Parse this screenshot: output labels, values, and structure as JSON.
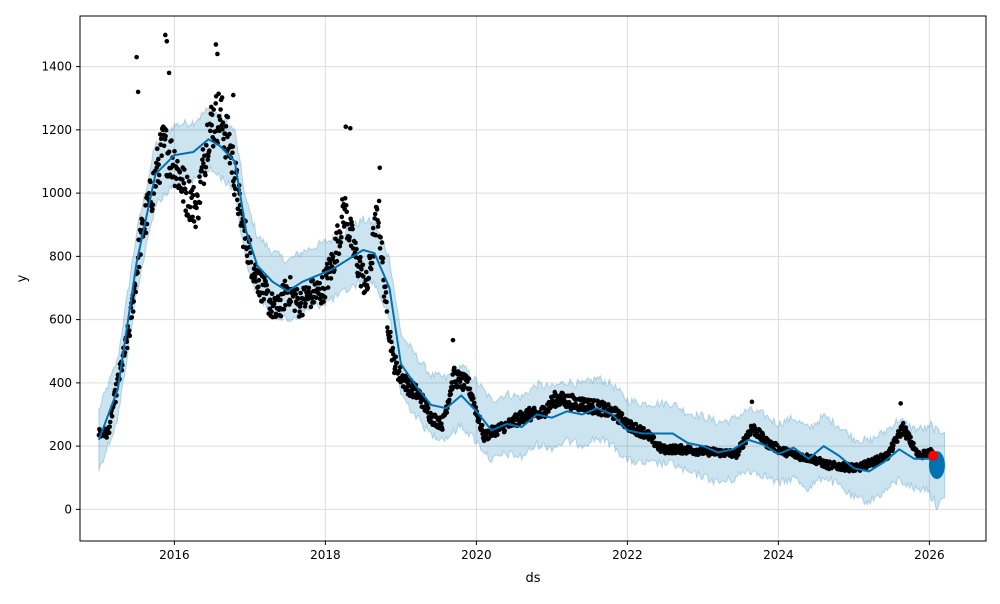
{
  "chart_data": {
    "type": "scatter",
    "title": "",
    "xlabel": "ds",
    "ylabel": "y",
    "xlim": [
      2014.75,
      2026.75
    ],
    "ylim": [
      -100,
      1560
    ],
    "grid": true,
    "x_ticks": [
      2016,
      2018,
      2020,
      2022,
      2024,
      2026
    ],
    "x_tick_labels": [
      "2016",
      "2018",
      "2020",
      "2022",
      "2024",
      "2026"
    ],
    "y_ticks": [
      0,
      200,
      400,
      600,
      800,
      1000,
      1200,
      1400
    ],
    "y_tick_labels": [
      "0",
      "200",
      "400",
      "600",
      "800",
      "1000",
      "1200",
      "1400"
    ],
    "colors": {
      "observed": "#000000",
      "forecast": "#0072B2",
      "interval": "#0072B2",
      "highlight": "#ff0000",
      "grid": "#dddddd"
    },
    "observed_anchors": [
      [
        2015.0,
        240
      ],
      [
        2015.12,
        240
      ],
      [
        2015.25,
        400
      ],
      [
        2015.4,
        560
      ],
      [
        2015.55,
        850
      ],
      [
        2015.7,
        1000
      ],
      [
        2015.85,
        1150
      ],
      [
        2016.0,
        1100
      ],
      [
        2016.15,
        1000
      ],
      [
        2016.3,
        950
      ],
      [
        2016.45,
        1200
      ],
      [
        2016.6,
        1250
      ],
      [
        2016.75,
        1130
      ],
      [
        2016.9,
        900
      ],
      [
        2017.05,
        760
      ],
      [
        2017.2,
        680
      ],
      [
        2017.35,
        620
      ],
      [
        2017.5,
        700
      ],
      [
        2017.65,
        650
      ],
      [
        2017.8,
        680
      ],
      [
        2017.95,
        690
      ],
      [
        2018.1,
        780
      ],
      [
        2018.25,
        950
      ],
      [
        2018.4,
        800
      ],
      [
        2018.55,
        700
      ],
      [
        2018.7,
        950
      ],
      [
        2018.8,
        650
      ],
      [
        2018.9,
        470
      ],
      [
        2019.0,
        420
      ],
      [
        2019.1,
        390
      ],
      [
        2019.25,
        360
      ],
      [
        2019.4,
        290
      ],
      [
        2019.55,
        270
      ],
      [
        2019.7,
        420
      ],
      [
        2019.9,
        390
      ],
      [
        2020.1,
        230
      ],
      [
        2020.25,
        250
      ],
      [
        2020.45,
        270
      ],
      [
        2020.65,
        300
      ],
      [
        2020.85,
        300
      ],
      [
        2021.05,
        350
      ],
      [
        2021.25,
        340
      ],
      [
        2021.45,
        330
      ],
      [
        2021.65,
        320
      ],
      [
        2021.85,
        300
      ],
      [
        2022.05,
        260
      ],
      [
        2022.25,
        240
      ],
      [
        2022.45,
        190
      ],
      [
        2022.7,
        190
      ],
      [
        2022.95,
        185
      ],
      [
        2023.2,
        180
      ],
      [
        2023.45,
        175
      ],
      [
        2023.65,
        260
      ],
      [
        2023.85,
        210
      ],
      [
        2024.05,
        185
      ],
      [
        2024.25,
        170
      ],
      [
        2024.45,
        160
      ],
      [
        2024.65,
        140
      ],
      [
        2024.85,
        135
      ],
      [
        2025.05,
        130
      ],
      [
        2025.25,
        150
      ],
      [
        2025.45,
        170
      ],
      [
        2025.65,
        260
      ],
      [
        2025.85,
        170
      ],
      [
        2026.0,
        180
      ],
      [
        2026.05,
        175
      ]
    ],
    "observed_outliers": [
      [
        2015.5,
        1430
      ],
      [
        2015.52,
        1320
      ],
      [
        2015.88,
        1500
      ],
      [
        2015.9,
        1480
      ],
      [
        2015.93,
        1380
      ],
      [
        2016.55,
        1470
      ],
      [
        2016.57,
        1440
      ],
      [
        2016.78,
        1310
      ],
      [
        2018.27,
        1210
      ],
      [
        2018.33,
        1205
      ],
      [
        2018.72,
        1080
      ],
      [
        2019.69,
        535
      ],
      [
        2023.65,
        340
      ],
      [
        2025.62,
        335
      ]
    ],
    "forecast_line": [
      [
        2015.0,
        220
      ],
      [
        2015.25,
        380
      ],
      [
        2015.5,
        780
      ],
      [
        2015.75,
        1060
      ],
      [
        2016.0,
        1120
      ],
      [
        2016.25,
        1130
      ],
      [
        2016.45,
        1170
      ],
      [
        2016.6,
        1150
      ],
      [
        2016.8,
        1100
      ],
      [
        2016.95,
        880
      ],
      [
        2017.1,
        770
      ],
      [
        2017.3,
        720
      ],
      [
        2017.5,
        690
      ],
      [
        2017.7,
        720
      ],
      [
        2017.9,
        740
      ],
      [
        2018.1,
        760
      ],
      [
        2018.3,
        790
      ],
      [
        2018.5,
        820
      ],
      [
        2018.65,
        810
      ],
      [
        2018.85,
        700
      ],
      [
        2019.0,
        460
      ],
      [
        2019.2,
        390
      ],
      [
        2019.4,
        330
      ],
      [
        2019.6,
        320
      ],
      [
        2019.8,
        360
      ],
      [
        2020.0,
        310
      ],
      [
        2020.2,
        250
      ],
      [
        2020.4,
        270
      ],
      [
        2020.6,
        260
      ],
      [
        2020.8,
        300
      ],
      [
        2021.0,
        290
      ],
      [
        2021.2,
        310
      ],
      [
        2021.4,
        300
      ],
      [
        2021.6,
        320
      ],
      [
        2021.8,
        300
      ],
      [
        2022.0,
        250
      ],
      [
        2022.2,
        240
      ],
      [
        2022.4,
        240
      ],
      [
        2022.6,
        240
      ],
      [
        2022.8,
        210
      ],
      [
        2023.0,
        200
      ],
      [
        2023.2,
        180
      ],
      [
        2023.4,
        190
      ],
      [
        2023.6,
        220
      ],
      [
        2023.8,
        205
      ],
      [
        2024.0,
        175
      ],
      [
        2024.2,
        195
      ],
      [
        2024.4,
        160
      ],
      [
        2024.6,
        200
      ],
      [
        2024.8,
        170
      ],
      [
        2025.0,
        130
      ],
      [
        2025.2,
        120
      ],
      [
        2025.4,
        150
      ],
      [
        2025.6,
        190
      ],
      [
        2025.8,
        160
      ],
      [
        2026.0,
        160
      ],
      [
        2026.1,
        130
      ],
      [
        2026.2,
        140
      ]
    ],
    "interval_halfwidth": 95,
    "forecast_ellipse_center": [
      2026.1,
      140
    ],
    "highlight_point": [
      2026.05,
      170
    ]
  }
}
